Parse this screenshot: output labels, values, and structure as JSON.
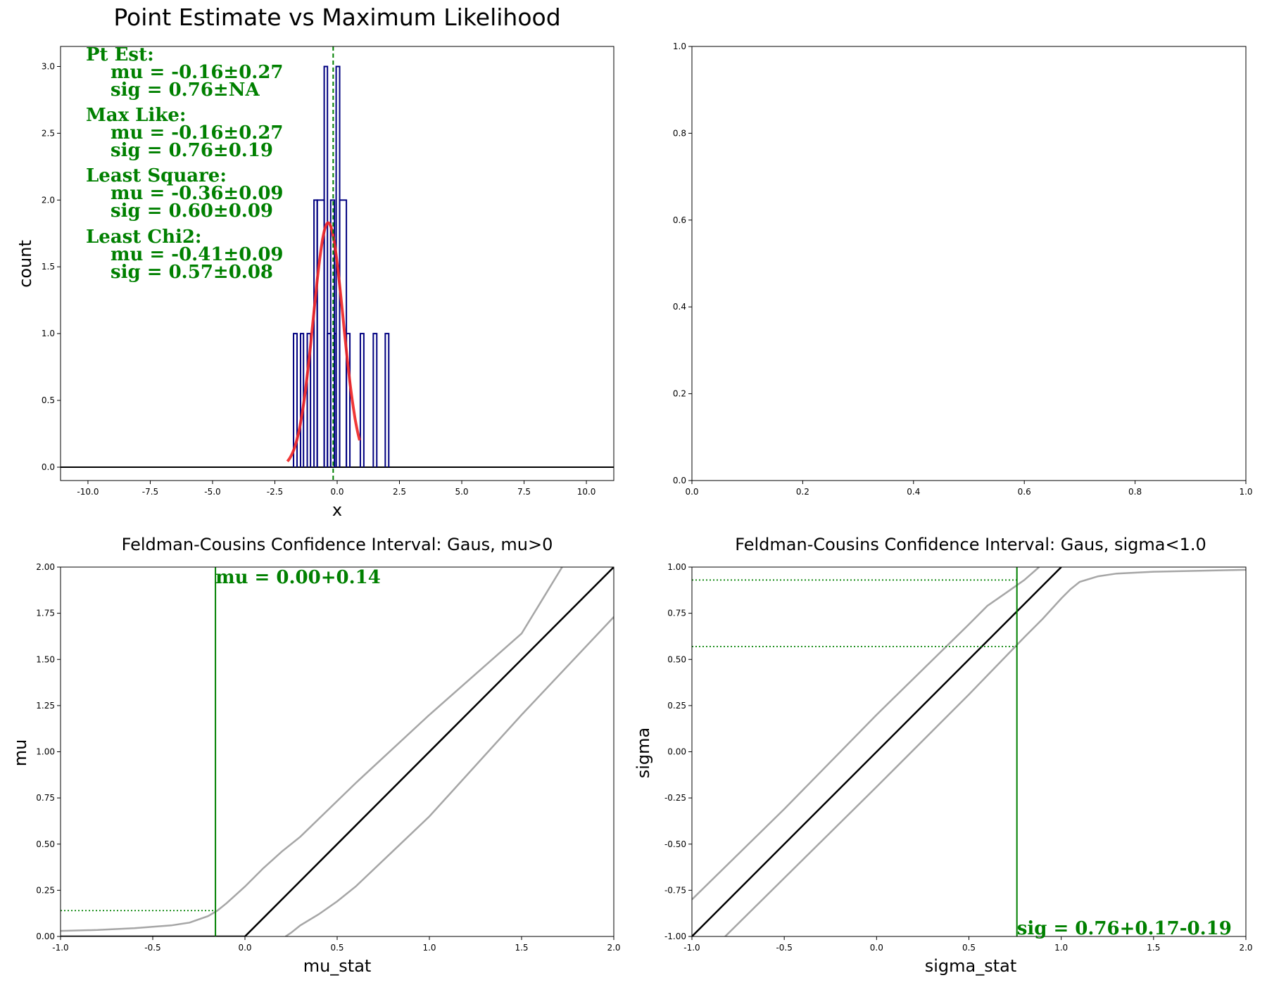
{
  "figure": {
    "colors": {
      "hist": "#000080",
      "fit": "#ee2222",
      "band": "#a6a6a6",
      "diag": "#000000",
      "annot": "#008000"
    }
  },
  "chart_data": [
    {
      "id": "hist",
      "type": "bar",
      "title": "Point Estimate vs Maximum Likelihood",
      "xlabel": "x",
      "ylabel": "count",
      "xlim": [
        -11.1,
        11.1
      ],
      "ylim": [
        -0.1,
        3.15
      ],
      "xticks": [
        -10.0,
        -7.5,
        -5.0,
        -2.5,
        0.0,
        2.5,
        5.0,
        7.5,
        10.0
      ],
      "yticks": [
        0.0,
        0.5,
        1.0,
        1.5,
        2.0,
        2.5,
        3.0
      ],
      "histogram": {
        "bins": [
          {
            "x0": -1.75,
            "x1": -1.61,
            "count": 1
          },
          {
            "x0": -1.47,
            "x1": -1.35,
            "count": 1
          },
          {
            "x0": -1.2,
            "x1": -1.07,
            "count": 1
          },
          {
            "x0": -0.93,
            "x1": -0.8,
            "count": 2
          },
          {
            "x0": -0.8,
            "x1": -0.52,
            "count": 2
          },
          {
            "x0": -0.52,
            "x1": -0.39,
            "count": 3
          },
          {
            "x0": -0.39,
            "x1": -0.26,
            "count": 1
          },
          {
            "x0": -0.26,
            "x1": -0.11,
            "count": 2
          },
          {
            "x0": -0.11,
            "x1": -0.04,
            "count": 1
          },
          {
            "x0": -0.04,
            "x1": 0.1,
            "count": 3
          },
          {
            "x0": 0.1,
            "x1": 0.37,
            "count": 2
          },
          {
            "x0": 0.37,
            "x1": 0.51,
            "count": 1
          },
          {
            "x0": 0.93,
            "x1": 1.07,
            "count": 1
          },
          {
            "x0": 1.45,
            "x1": 1.59,
            "count": 1
          },
          {
            "x0": 1.93,
            "x1": 2.07,
            "count": 1
          }
        ]
      },
      "fit_curve": {
        "mu": -0.36,
        "sigma": 0.6,
        "amplitude": 1.83,
        "x_range": [
          -2.0,
          0.9
        ]
      },
      "vline_x": -0.16,
      "annotation_lines": [
        "Pt Est:",
        "mu = -0.16±0.27",
        "sig = 0.76±NA",
        "Max Like:",
        "mu = -0.16±0.27",
        "sig = 0.76±0.19",
        "Least Square:",
        "mu = -0.36±0.09",
        "sig = 0.60±0.09",
        "Least Chi2:",
        "mu = -0.41±0.09",
        "sig = 0.57±0.08"
      ]
    },
    {
      "id": "empty",
      "type": "line",
      "xlim": [
        0.0,
        1.0
      ],
      "ylim": [
        0.0,
        1.0
      ],
      "xticks": [
        0.0,
        0.2,
        0.4,
        0.6,
        0.8,
        1.0
      ],
      "yticks": [
        0.0,
        0.2,
        0.4,
        0.6,
        0.8,
        1.0
      ]
    },
    {
      "id": "fc_mu",
      "type": "line",
      "title": "Feldman-Cousins Confidence Interval: Gaus, mu>0",
      "xlabel": "mu_stat",
      "ylabel": "mu",
      "xlim": [
        -1.0,
        2.0
      ],
      "ylim": [
        0.0,
        2.0
      ],
      "xticks": [
        -1.0,
        -0.5,
        0.0,
        0.5,
        1.0,
        1.5,
        2.0
      ],
      "yticks": [
        0.0,
        0.25,
        0.5,
        0.75,
        1.0,
        1.25,
        1.5,
        1.75,
        2.0
      ],
      "series": [
        {
          "role": "band-upper",
          "x": [
            -1.0,
            -0.8,
            -0.6,
            -0.4,
            -0.3,
            -0.2,
            -0.15,
            -0.1,
            0.0,
            0.1,
            0.2,
            0.3,
            0.6,
            1.0,
            1.5,
            1.72
          ],
          "y": [
            0.03,
            0.035,
            0.045,
            0.06,
            0.075,
            0.11,
            0.14,
            0.18,
            0.27,
            0.37,
            0.46,
            0.54,
            0.83,
            1.2,
            1.64,
            2.0
          ]
        },
        {
          "role": "center",
          "x": [
            -1.0,
            0.0,
            2.0
          ],
          "y": [
            0.0,
            0.0,
            2.0
          ]
        },
        {
          "role": "band-lower",
          "x": [
            0.22,
            0.25,
            0.3,
            0.4,
            0.5,
            0.6,
            0.8,
            1.0,
            1.5,
            2.0
          ],
          "y": [
            0.0,
            0.02,
            0.06,
            0.12,
            0.19,
            0.27,
            0.46,
            0.65,
            1.2,
            1.73
          ]
        }
      ],
      "vline_x": -0.16,
      "hlines": [
        {
          "y": 0.14,
          "x_end": -0.16
        }
      ],
      "annotation": "mu = 0.00+0.14"
    },
    {
      "id": "fc_sigma",
      "type": "line",
      "title": "Feldman-Cousins Confidence Interval: Gaus, sigma<1.0",
      "xlabel": "sigma_stat",
      "ylabel": "sigma",
      "xlim": [
        -1.0,
        2.0
      ],
      "ylim": [
        -1.0,
        1.0
      ],
      "xticks": [
        -1.0,
        -0.5,
        0.0,
        0.5,
        1.0,
        1.5,
        2.0
      ],
      "yticks": [
        -1.0,
        -0.75,
        -0.5,
        -0.25,
        0.0,
        0.25,
        0.5,
        0.75,
        1.0
      ],
      "series": [
        {
          "role": "band-upper",
          "x": [
            -1.0,
            -0.5,
            0.0,
            0.5,
            0.6,
            0.7,
            0.8,
            0.88
          ],
          "y": [
            -0.8,
            -0.31,
            0.2,
            0.69,
            0.79,
            0.86,
            0.93,
            1.0
          ]
        },
        {
          "role": "center",
          "x": [
            -1.0,
            1.0
          ],
          "y": [
            -1.0,
            1.0
          ]
        },
        {
          "role": "band-lower",
          "x": [
            -0.82,
            0.0,
            0.5,
            0.8,
            0.9,
            1.0,
            1.05,
            1.1,
            1.2,
            1.3,
            1.5,
            2.0
          ],
          "y": [
            -1.0,
            -0.19,
            0.31,
            0.62,
            0.72,
            0.83,
            0.88,
            0.92,
            0.95,
            0.965,
            0.975,
            0.985
          ]
        }
      ],
      "vline_x": 0.76,
      "hlines": [
        {
          "y": 0.93,
          "x_end": 0.76
        },
        {
          "y": 0.57,
          "x_end": 0.76
        }
      ],
      "annotation": "sig = 0.76+0.17-0.19"
    }
  ]
}
